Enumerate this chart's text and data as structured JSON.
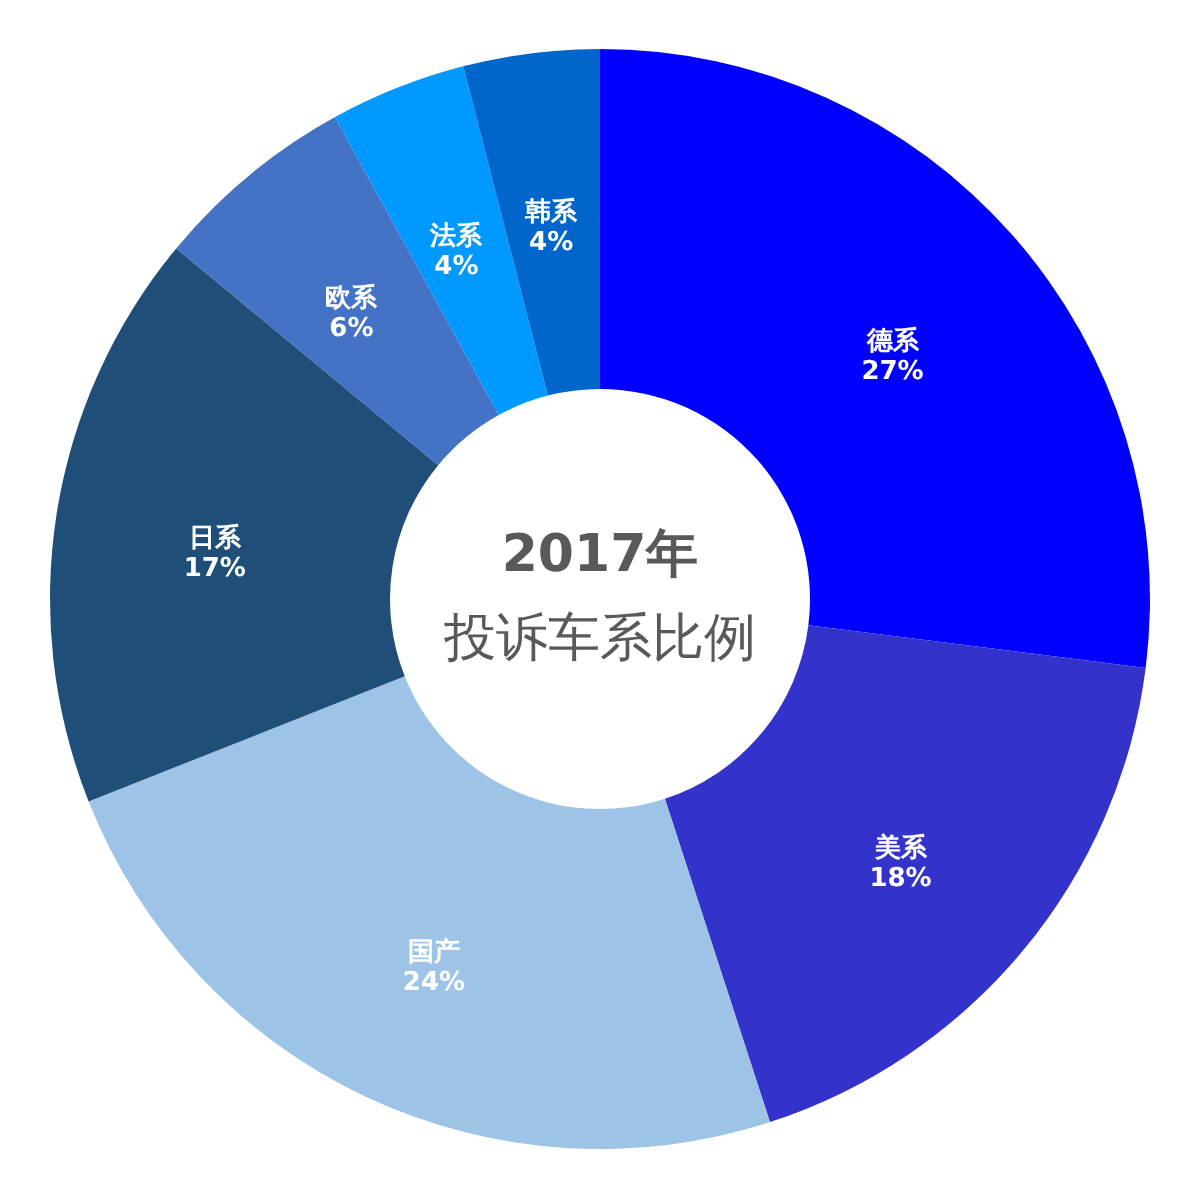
{
  "chart_data": {
    "type": "donut",
    "title": "2017年",
    "subtitle": "投诉车系比例",
    "categories": [
      "德系",
      "美系",
      "国产",
      "日系",
      "欧系",
      "法系",
      "韩系"
    ],
    "values": [
      27,
      18,
      24,
      17,
      6,
      4,
      4
    ],
    "value_labels": [
      "27%",
      "18%",
      "24%",
      "17%",
      "6%",
      "4%",
      "4%"
    ],
    "colors": [
      "#0000ff",
      "#3333cc",
      "#9dc3e6",
      "#1f4e79",
      "#4472c4",
      "#0099ff",
      "#0066cc"
    ]
  }
}
